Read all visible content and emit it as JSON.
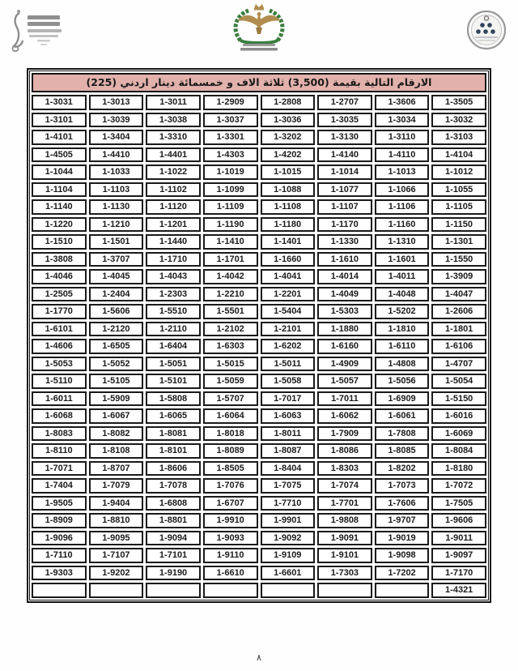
{
  "header": {
    "left_logo": "jordan-egovernment-emblem",
    "center_logo": "public-security-directorate-eagle-emblem",
    "right_logo": "circular-stamp-seal"
  },
  "title_bar": {
    "text": "الارقام التالية بقيمة  (3,500) ثلاثة الاف و خمسمائة دينار اردني (225)"
  },
  "table": {
    "columns": 8,
    "rows": [
      [
        "1-3031",
        "1-3013",
        "1-3011",
        "1-2909",
        "1-2808",
        "1-2707",
        "1-3606",
        "1-3505"
      ],
      [
        "1-3101",
        "1-3039",
        "1-3038",
        "1-3037",
        "1-3036",
        "1-3035",
        "1-3034",
        "1-3032"
      ],
      [
        "1-4101",
        "1-3404",
        "1-3310",
        "1-3301",
        "1-3202",
        "1-3130",
        "1-3110",
        "1-3103"
      ],
      [
        "1-4505",
        "1-4410",
        "1-4401",
        "1-4303",
        "1-4202",
        "1-4140",
        "1-4110",
        "1-4104"
      ],
      [
        "1-1044",
        "1-1033",
        "1-1022",
        "1-1019",
        "1-1015",
        "1-1014",
        "1-1013",
        "1-1012"
      ],
      [
        "1-1104",
        "1-1103",
        "1-1102",
        "1-1099",
        "1-1088",
        "1-1077",
        "1-1066",
        "1-1055"
      ],
      [
        "1-1140",
        "1-1130",
        "1-1120",
        "1-1109",
        "1-1108",
        "1-1107",
        "1-1106",
        "1-1105"
      ],
      [
        "1-1220",
        "1-1210",
        "1-1201",
        "1-1190",
        "1-1180",
        "1-1170",
        "1-1160",
        "1-1150"
      ],
      [
        "1-1510",
        "1-1501",
        "1-1440",
        "1-1410",
        "1-1401",
        "1-1330",
        "1-1310",
        "1-1301"
      ],
      [
        "1-3808",
        "1-3707",
        "1-1710",
        "1-1701",
        "1-1660",
        "1-1610",
        "1-1601",
        "1-1550"
      ],
      [
        "1-4046",
        "1-4045",
        "1-4043",
        "1-4042",
        "1-4041",
        "1-4014",
        "1-4011",
        "1-3909"
      ],
      [
        "1-2505",
        "1-2404",
        "1-2303",
        "1-2210",
        "1-2201",
        "1-4049",
        "1-4048",
        "1-4047"
      ],
      [
        "1-1770",
        "1-5606",
        "1-5510",
        "1-5501",
        "1-5404",
        "1-5303",
        "1-5202",
        "1-2606"
      ],
      [
        "1-6101",
        "1-2120",
        "1-2110",
        "1-2102",
        "1-2101",
        "1-1880",
        "1-1810",
        "1-1801"
      ],
      [
        "1-4606",
        "1-6505",
        "1-6404",
        "1-6303",
        "1-6202",
        "1-6160",
        "1-6110",
        "1-6106"
      ],
      [
        "1-5053",
        "1-5052",
        "1-5051",
        "1-5015",
        "1-5011",
        "1-4909",
        "1-4808",
        "1-4707"
      ],
      [
        "1-5110",
        "1-5105",
        "1-5101",
        "1-5059",
        "1-5058",
        "1-5057",
        "1-5056",
        "1-5054"
      ],
      [
        "1-6011",
        "1-5909",
        "1-5808",
        "1-5707",
        "1-7017",
        "1-7011",
        "1-6909",
        "1-5150"
      ],
      [
        "1-6068",
        "1-6067",
        "1-6065",
        "1-6064",
        "1-6063",
        "1-6062",
        "1-6061",
        "1-6016"
      ],
      [
        "1-8083",
        "1-8082",
        "1-8081",
        "1-8018",
        "1-8011",
        "1-7909",
        "1-7808",
        "1-6069"
      ],
      [
        "1-8110",
        "1-8108",
        "1-8101",
        "1-8089",
        "1-8087",
        "1-8086",
        "1-8085",
        "1-8084"
      ],
      [
        "1-7071",
        "1-8707",
        "1-8606",
        "1-8505",
        "1-8404",
        "1-8303",
        "1-8202",
        "1-8180"
      ],
      [
        "1-7404",
        "1-7079",
        "1-7078",
        "1-7076",
        "1-7075",
        "1-7074",
        "1-7073",
        "1-7072"
      ],
      [
        "1-9505",
        "1-9404",
        "1-6808",
        "1-6707",
        "1-7710",
        "1-7701",
        "1-7606",
        "1-7505"
      ],
      [
        "1-8909",
        "1-8810",
        "1-8801",
        "1-9910",
        "1-9901",
        "1-9808",
        "1-9707",
        "1-9606"
      ],
      [
        "1-9096",
        "1-9095",
        "1-9094",
        "1-9093",
        "1-9092",
        "1-9091",
        "1-9019",
        "1-9011"
      ],
      [
        "1-7110",
        "1-7107",
        "1-7101",
        "1-9110",
        "1-9109",
        "1-9101",
        "1-9098",
        "1-9097"
      ],
      [
        "1-9303",
        "1-9202",
        "1-9190",
        "1-6610",
        "1-6601",
        "1-7303",
        "1-7202",
        "1-7170"
      ],
      [
        "",
        "",
        "",
        "",
        "",
        "",
        "",
        "1-4321"
      ]
    ]
  },
  "page_number": "٨",
  "colors": {
    "title_bg": "#e2b1ac",
    "border": "#141414",
    "cell_text": "#1b1b1b",
    "wreath_green": "#3a7d3f",
    "eagle_gold": "#b08d4f"
  }
}
